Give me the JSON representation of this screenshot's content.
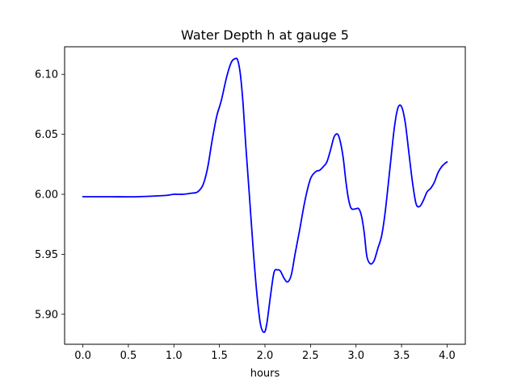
{
  "chart_data": {
    "type": "line",
    "title": "Water Depth h at gauge 5",
    "xlabel": "hours",
    "ylabel": "",
    "xlim": [
      -0.2,
      4.2
    ],
    "ylim": [
      5.875,
      6.123
    ],
    "xticks": [
      0.0,
      0.5,
      1.0,
      1.5,
      2.0,
      2.5,
      3.0,
      3.5,
      4.0
    ],
    "xtick_labels": [
      "0.0",
      "0.5",
      "1.0",
      "1.5",
      "2.0",
      "2.5",
      "3.0",
      "3.5",
      "4.0"
    ],
    "yticks": [
      5.9,
      5.95,
      6.0,
      6.05,
      6.1
    ],
    "ytick_labels": [
      "5.90",
      "5.95",
      "6.00",
      "6.05",
      "6.10"
    ],
    "grid": false,
    "series": [
      {
        "color": "#0000ff",
        "x": [
          0.0,
          0.3,
          0.6,
          0.9,
          1.0,
          1.1,
          1.2,
          1.26,
          1.32,
          1.37,
          1.42,
          1.47,
          1.52,
          1.58,
          1.63,
          1.67,
          1.7,
          1.73,
          1.76,
          1.79,
          1.83,
          1.87,
          1.91,
          1.95,
          1.99,
          2.02,
          2.06,
          2.1,
          2.14,
          2.17,
          2.21,
          2.25,
          2.29,
          2.33,
          2.38,
          2.44,
          2.5,
          2.56,
          2.6,
          2.64,
          2.68,
          2.72,
          2.76,
          2.8,
          2.83,
          2.86,
          2.89,
          2.92,
          2.95,
          3.0,
          3.03,
          3.06,
          3.09,
          3.12,
          3.16,
          3.2,
          3.24,
          3.28,
          3.32,
          3.37,
          3.42,
          3.46,
          3.5,
          3.54,
          3.58,
          3.62,
          3.66,
          3.7,
          3.74,
          3.78,
          3.82,
          3.86,
          3.9,
          3.94,
          3.98,
          4.0
        ],
        "y": [
          5.998,
          5.998,
          5.998,
          5.999,
          6.0,
          6.0,
          6.001,
          6.002,
          6.008,
          6.022,
          6.045,
          6.065,
          6.078,
          6.098,
          6.11,
          6.113,
          6.112,
          6.1,
          6.075,
          6.04,
          5.998,
          5.955,
          5.918,
          5.892,
          5.885,
          5.892,
          5.915,
          5.935,
          5.937,
          5.936,
          5.93,
          5.927,
          5.933,
          5.95,
          5.97,
          5.995,
          6.013,
          6.019,
          6.02,
          6.023,
          6.027,
          6.037,
          6.048,
          6.05,
          6.043,
          6.03,
          6.01,
          5.995,
          5.988,
          5.988,
          5.988,
          5.982,
          5.968,
          5.948,
          5.942,
          5.945,
          5.955,
          5.965,
          5.985,
          6.02,
          6.055,
          6.072,
          6.073,
          6.06,
          6.035,
          6.01,
          5.992,
          5.99,
          5.995,
          6.002,
          6.005,
          6.01,
          6.018,
          6.023,
          6.026,
          6.027
        ]
      }
    ]
  }
}
